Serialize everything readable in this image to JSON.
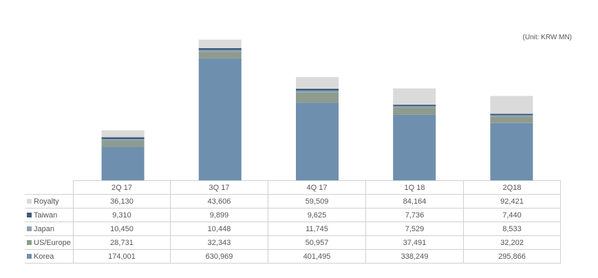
{
  "unit": "(Unit: KRW MN)",
  "colors": {
    "Korea": "#6f8fae",
    "US/Europe": "#8e9b8d",
    "Japan": "#8aa2b3",
    "Taiwan": "#3e5a78",
    "Royalty": "#dadada"
  },
  "chart_data": {
    "type": "bar",
    "stacked": true,
    "categories": [
      "2Q 17",
      "3Q 17",
      "4Q 17",
      "1Q 18",
      "2Q18"
    ],
    "series": [
      {
        "name": "Korea",
        "values": [
          174001,
          630969,
          401495,
          338249,
          295866
        ]
      },
      {
        "name": "US/Europe",
        "values": [
          28731,
          32343,
          50957,
          37491,
          32202
        ]
      },
      {
        "name": "Japan",
        "values": [
          10450,
          10448,
          11745,
          7529,
          8533
        ]
      },
      {
        "name": "Taiwan",
        "values": [
          9310,
          9899,
          9625,
          7736,
          7440
        ]
      },
      {
        "name": "Royalty",
        "values": [
          36130,
          43606,
          59509,
          84164,
          92421
        ]
      }
    ],
    "legend": "table-rows",
    "grid": false
  },
  "table": {
    "headers": [
      "2Q 17",
      "3Q 17",
      "4Q 17",
      "1Q 18",
      "2Q18"
    ],
    "rows": [
      {
        "label": "Royalty",
        "values": [
          "36,130",
          "43,606",
          "59,509",
          "84,164",
          "92,421"
        ]
      },
      {
        "label": "Taiwan",
        "values": [
          "9,310",
          "9,899",
          "9,625",
          "7,736",
          "7,440"
        ]
      },
      {
        "label": "Japan",
        "values": [
          "10,450",
          "10,448",
          "11,745",
          "7,529",
          "8,533"
        ]
      },
      {
        "label": "US/Europe",
        "values": [
          "28,731",
          "32,343",
          "50,957",
          "37,491",
          "32,202"
        ]
      },
      {
        "label": "Korea",
        "values": [
          "174,001",
          "630,969",
          "401,495",
          "338,249",
          "295,866"
        ]
      }
    ]
  }
}
